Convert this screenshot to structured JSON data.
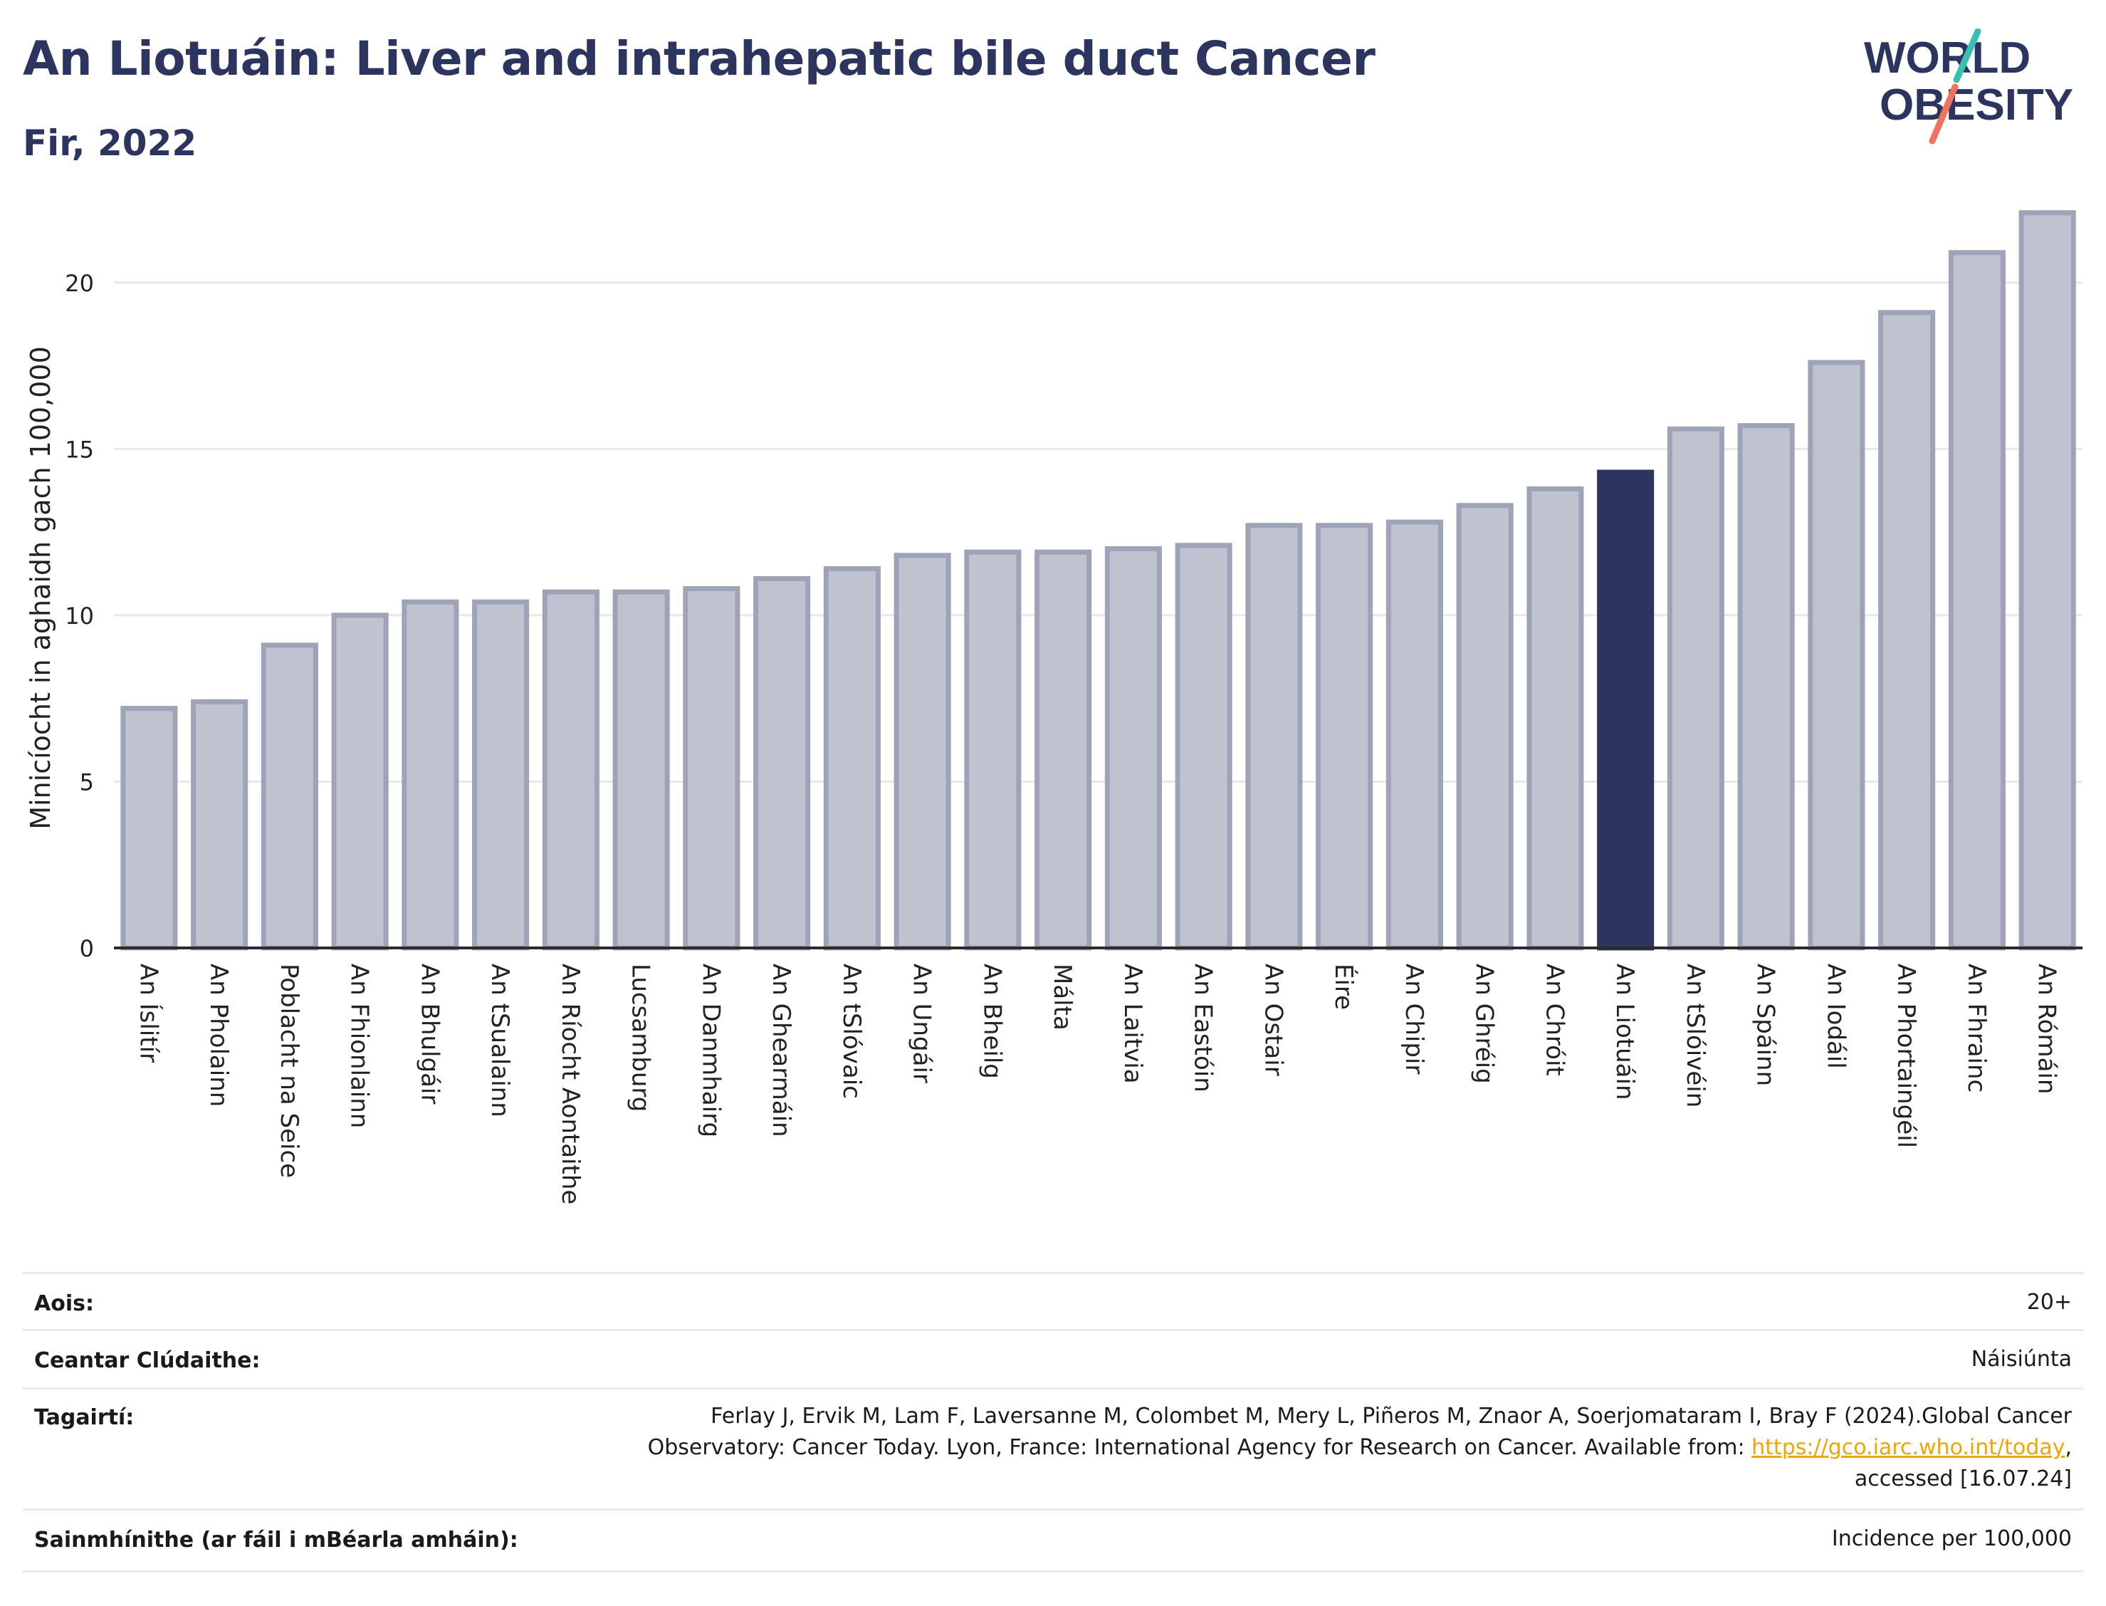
{
  "header": {
    "title": "An Liotuáin: Liver and intrahepatic bile duct Cancer",
    "subtitle": "Fir, 2022",
    "logo_line1": "WORLD",
    "logo_line2": "OBESITY"
  },
  "colors": {
    "bar": "#bfc2cf",
    "bar_stroke": "#9ea3b8",
    "highlight": "#2c3560",
    "grid": "#e6e8ee",
    "axis": "#2b2b2b",
    "logo_teal": "#3bbfb3",
    "logo_coral": "#f0735f"
  },
  "chart_data": {
    "type": "bar",
    "ylabel": "Minicíocht in aghaidh gach 100,000",
    "ylim": [
      0,
      22.5
    ],
    "yticks": [
      0,
      5,
      10,
      15,
      20
    ],
    "grid": true,
    "highlight": "An Liotuáin",
    "categories": [
      "An Íslitír",
      "An Pholainn",
      "Poblacht na Seice",
      "An Fhionlainn",
      "An Bhulgáir",
      "An tSualainn",
      "An Ríocht Aontaithe",
      "Lucsamburg",
      "An Danmhairg",
      "An Ghearmáin",
      "An tSlóvaic",
      "An Ungáir",
      "An Bheilg",
      "Málta",
      "An Laitvia",
      "An Eastóin",
      "An Ostair",
      "Éire",
      "An Chipir",
      "An Ghréig",
      "An Chróit",
      "An Liotuáin",
      "An tSlóivéin",
      "An Spáinn",
      "An Iodáil",
      "An Phortaingéil",
      "An Fhrainc",
      "An Rómáin"
    ],
    "values": [
      7.2,
      7.4,
      9.1,
      10.0,
      10.4,
      10.4,
      10.7,
      10.7,
      10.8,
      11.1,
      11.4,
      11.8,
      11.9,
      11.9,
      12.0,
      12.1,
      12.7,
      12.7,
      12.8,
      13.3,
      13.8,
      14.3,
      15.6,
      15.7,
      17.6,
      19.1,
      20.9,
      22.1
    ]
  },
  "meta": {
    "age_label": "Aois:",
    "age_value": "20+",
    "coverage_label": "Ceantar Clúdaithe:",
    "coverage_value": "Náisiúnta",
    "refs_label": "Tagairtí:",
    "refs_line1": "Ferlay J, Ervik M, Lam F, Laversanne M, Colombet M, Mery L, Piñeros M, Znaor A, Soerjomataram I, Bray F (2024).Global Cancer",
    "refs_line2a": "Observatory: Cancer Today. Lyon, France: International Agency for Research on Cancer. Available from: ",
    "refs_link": "https://gco.iarc.who.int/today",
    "refs_line2b": ",",
    "refs_line3": "accessed [16.07.24]",
    "defs_label": "Sainmhínithe (ar fáil i mBéarla amháin):",
    "defs_value": "Incidence per 100,000"
  }
}
